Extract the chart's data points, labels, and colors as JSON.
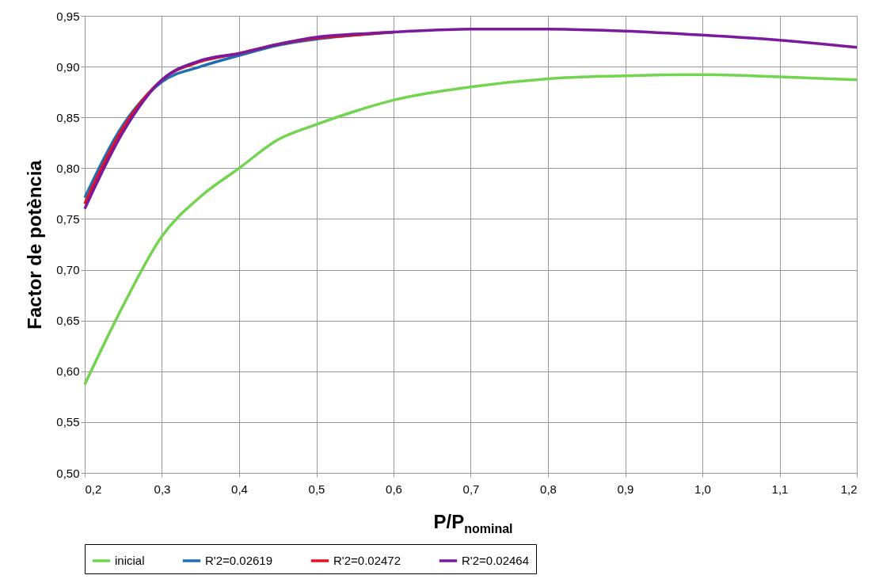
{
  "chart_data": {
    "type": "line",
    "xlabel": "P/P$_{nominal}$",
    "ylabel": "Factor de potència",
    "x": [
      0.2,
      0.25,
      0.3,
      0.35,
      0.4,
      0.45,
      0.5,
      0.55,
      0.6,
      0.7,
      0.8,
      0.9,
      1.0,
      1.1,
      1.2
    ],
    "series": [
      {
        "name": "inicial",
        "color": "#73d44f",
        "values": [
          0.587,
          0.665,
          0.733,
          0.772,
          0.8,
          0.828,
          0.843,
          0.856,
          0.867,
          0.88,
          0.888,
          0.891,
          0.892,
          0.89,
          0.887
        ]
      },
      {
        "name": "R'2=0.02619",
        "color": "#1f6fb4",
        "values": [
          0.771,
          0.843,
          0.885,
          0.9,
          0.911,
          0.921,
          0.927,
          0.931,
          0.934,
          null,
          null,
          null,
          null,
          null,
          null
        ]
      },
      {
        "name": "R'2=0.02472",
        "color": "#e8101e",
        "values": [
          0.765,
          0.84,
          0.887,
          0.905,
          0.913,
          0.922,
          0.928,
          0.931,
          0.934,
          null,
          null,
          null,
          null,
          null,
          null
        ]
      },
      {
        "name": "R'2=0.02464",
        "color": "#7a1a9c",
        "values": [
          0.76,
          0.836,
          0.887,
          0.906,
          0.913,
          0.922,
          0.929,
          0.932,
          0.934,
          0.937,
          0.937,
          0.935,
          0.931,
          0.926,
          0.919
        ]
      }
    ],
    "xlim": [
      0.2,
      1.2
    ],
    "xticks": [
      {
        "value": 0.2,
        "label": "0,2"
      },
      {
        "value": 0.3,
        "label": "0,3"
      },
      {
        "value": 0.4,
        "label": "0,4"
      },
      {
        "value": 0.5,
        "label": "0,5"
      },
      {
        "value": 0.6,
        "label": "0,6"
      },
      {
        "value": 0.7,
        "label": "0,7"
      },
      {
        "value": 0.8,
        "label": "0,8"
      },
      {
        "value": 0.9,
        "label": "0,9"
      },
      {
        "value": 1.0,
        "label": "1,0"
      },
      {
        "value": 1.1,
        "label": "1,1"
      },
      {
        "value": 1.2,
        "label": "1,2"
      }
    ],
    "ylim": [
      0.5,
      0.95
    ],
    "yticks": [
      {
        "value": 0.5,
        "label": "0,50"
      },
      {
        "value": 0.55,
        "label": "0,55"
      },
      {
        "value": 0.6,
        "label": "0,60"
      },
      {
        "value": 0.65,
        "label": "0,65"
      },
      {
        "value": 0.7,
        "label": "0,70"
      },
      {
        "value": 0.75,
        "label": "0,75"
      },
      {
        "value": 0.8,
        "label": "0,80"
      },
      {
        "value": 0.85,
        "label": "0,85"
      },
      {
        "value": 0.9,
        "label": "0,90"
      },
      {
        "value": 0.95,
        "label": "0,95"
      }
    ],
    "grid": true,
    "legend": "bottom",
    "marker": "none",
    "line_style": "solid"
  }
}
